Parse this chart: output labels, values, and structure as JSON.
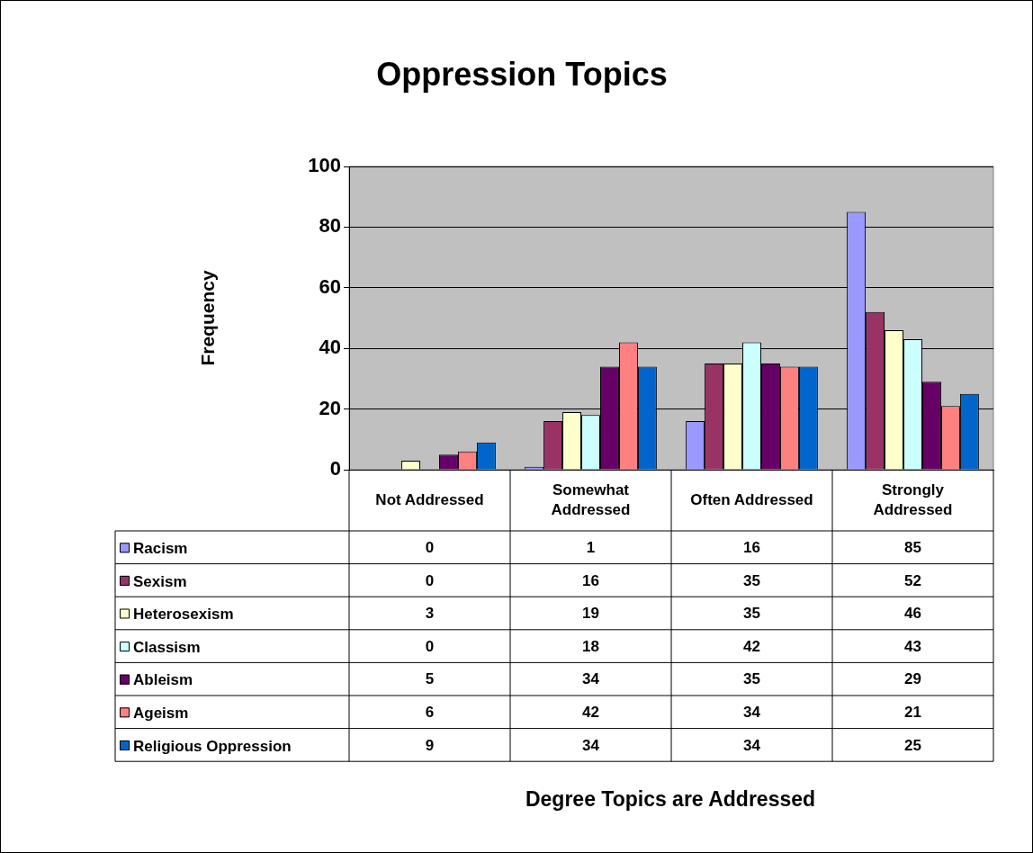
{
  "chart_data": {
    "type": "bar",
    "title": "Oppression Topics",
    "annotations": [
      "Degree Topics are Addressed"
    ],
    "ylabel": "Frequency",
    "categories": [
      "Not Addressed",
      "Somewhat Addressed",
      "Often Addressed",
      "Strongly Addressed"
    ],
    "series": [
      {
        "name": "Racism",
        "color": "#9999ff",
        "values": [
          0,
          1,
          16,
          85
        ]
      },
      {
        "name": "Sexism",
        "color": "#993366",
        "values": [
          0,
          16,
          35,
          52
        ]
      },
      {
        "name": "Heterosexism",
        "color": "#ffffcc",
        "values": [
          3,
          19,
          35,
          46
        ]
      },
      {
        "name": "Classism",
        "color": "#ccffff",
        "values": [
          0,
          18,
          42,
          43
        ]
      },
      {
        "name": "Ableism",
        "color": "#660066",
        "values": [
          5,
          34,
          35,
          29
        ]
      },
      {
        "name": "Ageism",
        "color": "#ff8080",
        "values": [
          6,
          42,
          34,
          21
        ]
      },
      {
        "name": "Religious Oppression",
        "color": "#0066cc",
        "values": [
          9,
          34,
          34,
          25
        ]
      }
    ],
    "ylim": [
      0,
      100
    ],
    "yticks": [
      0,
      20,
      40,
      60,
      80,
      100
    ],
    "grid": "y",
    "legend": "bottom left",
    "data_labels": true
  }
}
